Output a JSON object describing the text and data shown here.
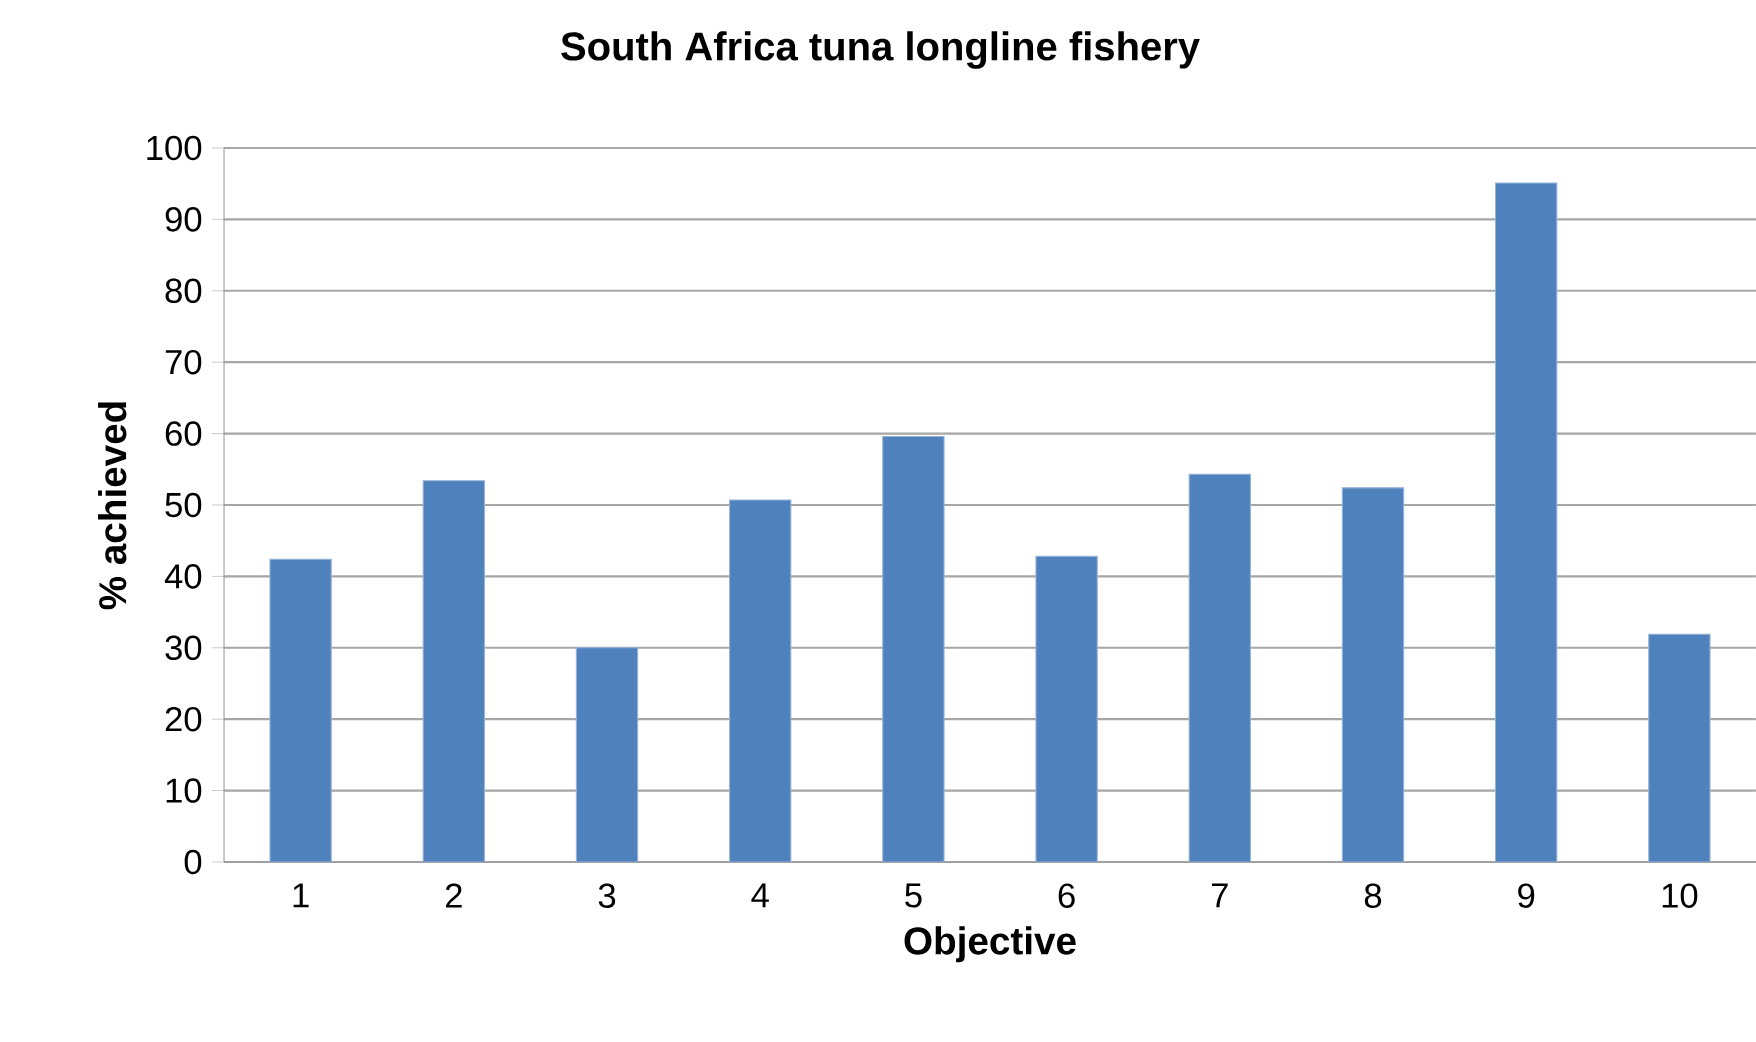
{
  "chart_data": {
    "type": "bar",
    "title": "South Africa tuna longline fishery",
    "xlabel": "Objective",
    "ylabel": "% achieved",
    "categories": [
      "1",
      "2",
      "3",
      "4",
      "5",
      "6",
      "7",
      "8",
      "9",
      "10"
    ],
    "values": [
      42.4,
      53.4,
      30.0,
      50.7,
      59.6,
      42.8,
      54.3,
      52.4,
      95.1,
      31.9
    ],
    "color": "#4f81bd",
    "ylim": [
      0,
      100
    ],
    "yticks": [
      0,
      10,
      20,
      30,
      40,
      50,
      60,
      70,
      80,
      90,
      100
    ],
    "grid": "y"
  }
}
